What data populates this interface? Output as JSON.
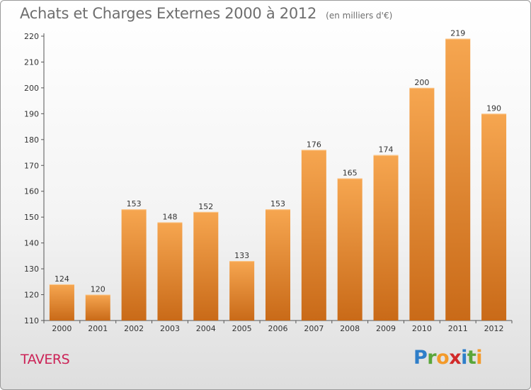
{
  "header": {
    "title": "Achats et Charges Externes 2000 à 2012",
    "unit": "(en milliers d'€)"
  },
  "footer": {
    "place": "TAVERS",
    "logo": [
      "P",
      "r",
      "o",
      "x",
      "i",
      "t",
      "i"
    ]
  },
  "chart_data": {
    "type": "bar",
    "title": "Achats et Charges Externes 2000 à 2012",
    "subtitle": "(en milliers d'€)",
    "categories": [
      "2000",
      "2001",
      "2002",
      "2003",
      "2004",
      "2005",
      "2006",
      "2007",
      "2008",
      "2009",
      "2010",
      "2011",
      "2012"
    ],
    "values": [
      124,
      120,
      153,
      148,
      152,
      133,
      153,
      176,
      165,
      174,
      200,
      219,
      190
    ],
    "ylim": [
      110,
      220
    ],
    "yticks": [
      110,
      120,
      130,
      140,
      150,
      160,
      170,
      180,
      190,
      200,
      210,
      220
    ],
    "grid": false,
    "bar_color": "#f0953e"
  }
}
